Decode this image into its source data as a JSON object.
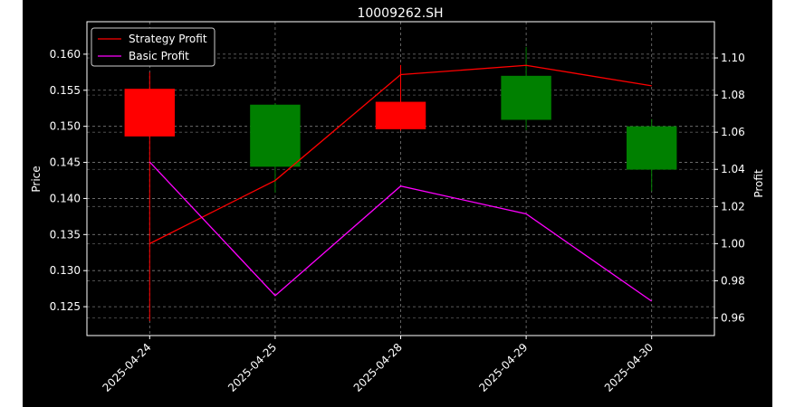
{
  "chart_data": {
    "type": "candlestick",
    "title": "10009262.SH",
    "xlabel": "",
    "ylabel_left": "Price",
    "ylabel_right": "Profit",
    "categories": [
      "2025-04-24",
      "2025-04-25",
      "2025-04-28",
      "2025-04-29",
      "2025-04-30"
    ],
    "candles": [
      {
        "open": 0.1486,
        "close": 0.1552,
        "high": 0.1575,
        "low": 0.123,
        "color": "#ff0000"
      },
      {
        "open": 0.153,
        "close": 0.1444,
        "high": 0.1532,
        "low": 0.1408,
        "color": "#008000"
      },
      {
        "open": 0.1496,
        "close": 0.1534,
        "high": 0.1585,
        "low": 0.1494,
        "color": "#ff0000"
      },
      {
        "open": 0.157,
        "close": 0.1509,
        "high": 0.161,
        "low": 0.1495,
        "color": "#008000"
      },
      {
        "open": 0.15,
        "close": 0.144,
        "high": 0.151,
        "low": 0.141,
        "color": "#008000"
      }
    ],
    "series": [
      {
        "name": "Strategy Profit",
        "axis": "right",
        "color": "#ff0000",
        "values": [
          1.0,
          1.034,
          1.091,
          1.096,
          1.085
        ]
      },
      {
        "name": "Basic Profit",
        "axis": "right",
        "color": "#ff00ff",
        "values": [
          1.044,
          0.972,
          1.031,
          1.016,
          0.969
        ]
      }
    ],
    "ylim_left": [
      0.121,
      0.1645
    ],
    "ylim_right": [
      0.9505,
      1.1195
    ],
    "yticks_left": [
      "0.125",
      "0.130",
      "0.135",
      "0.140",
      "0.145",
      "0.150",
      "0.155",
      "0.160"
    ],
    "yticks_right": [
      "0.96",
      "0.98",
      "1.00",
      "1.02",
      "1.04",
      "1.06",
      "1.08",
      "1.10"
    ],
    "grid": true,
    "legend_position": "top-left",
    "background_color": "#000000",
    "foreground_color": "#ffffff"
  }
}
